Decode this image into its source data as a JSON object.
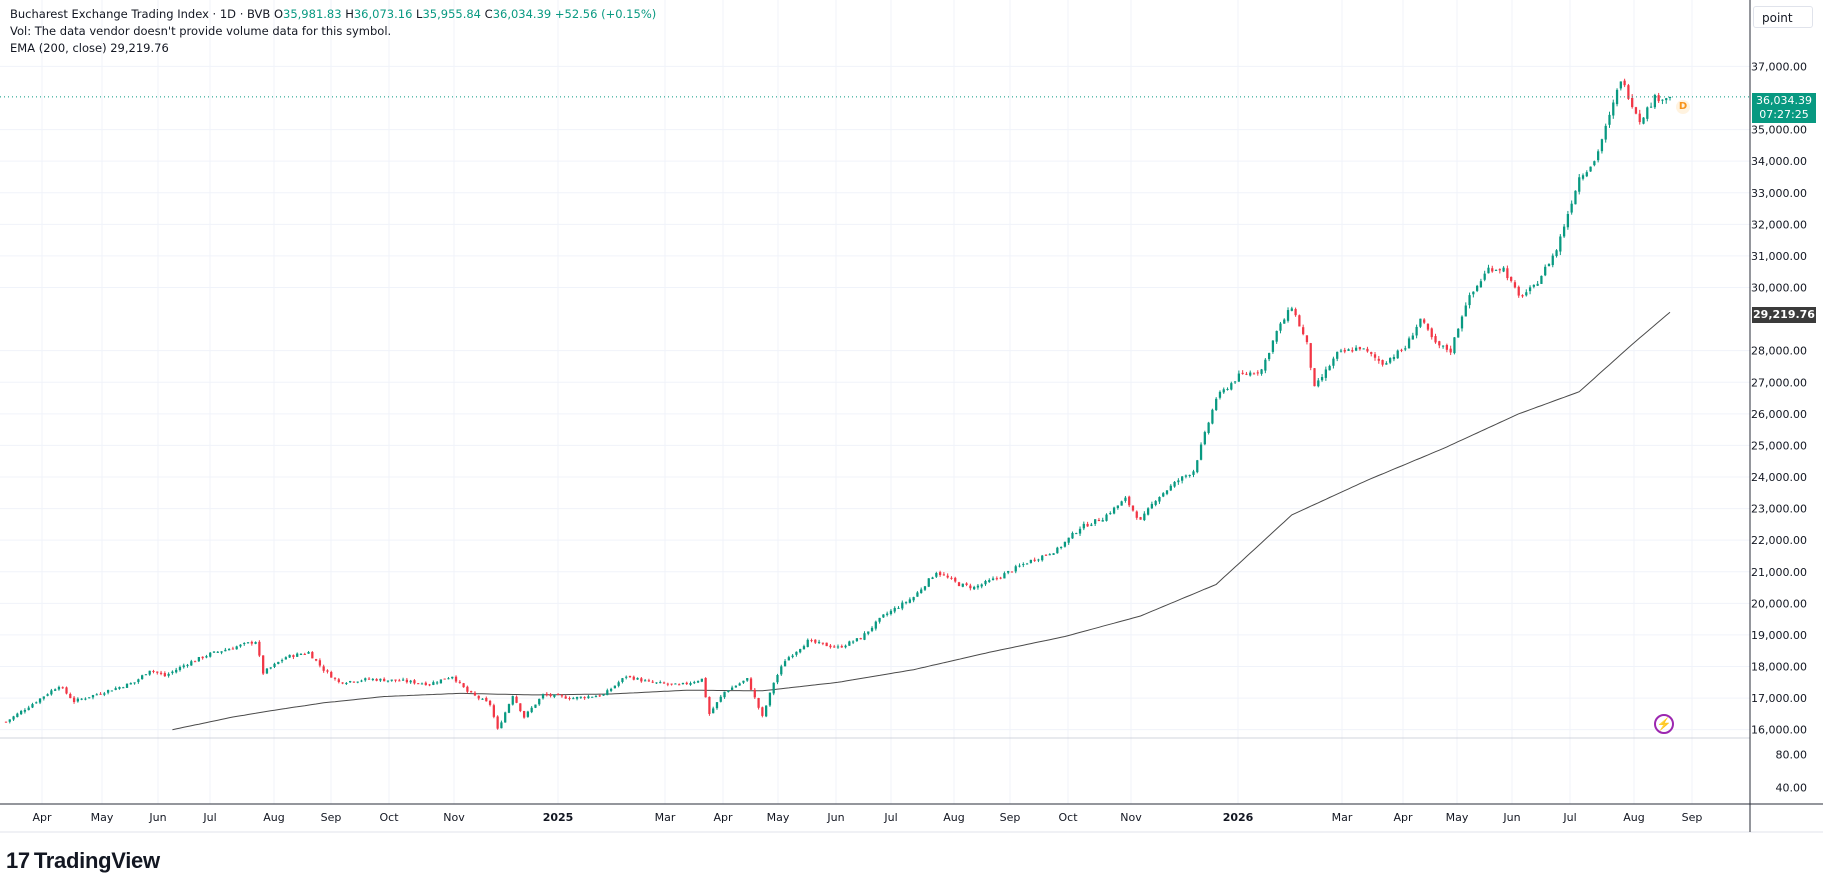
{
  "header": {
    "symbol": "Bucharest Exchange Trading Index · 1D · BVB",
    "o_label": "O",
    "o_value": "35,981.83",
    "h_label": "H",
    "h_value": "36,073.16",
    "l_label": "L",
    "l_value": "35,955.84",
    "c_label": "C",
    "c_value": "36,034.39",
    "change": "+52.56 (+0.15%)",
    "vol_note": "Vol: The data vendor doesn't provide volume data for this symbol.",
    "ema_label": "EMA (200, close)",
    "ema_value": "29,219.76"
  },
  "unit_selector": "point",
  "last_price": {
    "value": "36,034.39",
    "countdown": "07:27:25"
  },
  "ema_tag": "29,219.76",
  "badge": "D",
  "bolt_icon": "lightning-icon",
  "brand": {
    "text": "TradingView"
  },
  "colors": {
    "up": "#089981",
    "down": "#f23645",
    "ema": "#4a4a4a",
    "grid": "#f0f3fa",
    "accent": "#089981"
  },
  "chart_data": {
    "type": "candlestick",
    "price_axis": {
      "labels": [
        "37,000.00",
        "35,000.00",
        "34,000.00",
        "33,000.00",
        "32,000.00",
        "31,000.00",
        "30,000.00",
        "28,000.00",
        "27,000.00",
        "26,000.00",
        "25,000.00",
        "24,000.00",
        "23,000.00",
        "22,000.00",
        "21,000.00",
        "20,000.00",
        "19,000.00",
        "18,000.00",
        "17,000.00",
        "16,000.00"
      ],
      "values": [
        37000,
        35000,
        34000,
        33000,
        32000,
        31000,
        30000,
        28000,
        27000,
        26000,
        25000,
        24000,
        23000,
        22000,
        21000,
        20000,
        19000,
        18000,
        17000,
        16000
      ],
      "ylim": [
        15800,
        37900
      ]
    },
    "indicator_axis": {
      "labels": [
        "80.00",
        "40.00"
      ],
      "values": [
        80,
        40
      ],
      "ylim": [
        20,
        100
      ]
    },
    "time_axis": [
      {
        "label": "Apr",
        "bold": false
      },
      {
        "label": "May",
        "bold": false
      },
      {
        "label": "Jun",
        "bold": false
      },
      {
        "label": "Jul",
        "bold": false
      },
      {
        "label": "Aug",
        "bold": false
      },
      {
        "label": "Sep",
        "bold": false
      },
      {
        "label": "Oct",
        "bold": false
      },
      {
        "label": "Nov",
        "bold": false
      },
      {
        "label": "2025",
        "bold": true
      },
      {
        "label": "Mar",
        "bold": false
      },
      {
        "label": "Apr",
        "bold": false
      },
      {
        "label": "May",
        "bold": false
      },
      {
        "label": "Jun",
        "bold": false
      },
      {
        "label": "Jul",
        "bold": false
      },
      {
        "label": "Aug",
        "bold": false
      },
      {
        "label": "Sep",
        "bold": false
      },
      {
        "label": "Oct",
        "bold": false
      },
      {
        "label": "Nov",
        "bold": false
      },
      {
        "label": "2026",
        "bold": true
      },
      {
        "label": "Mar",
        "bold": false
      },
      {
        "label": "Apr",
        "bold": false
      },
      {
        "label": "May",
        "bold": false
      },
      {
        "label": "Jun",
        "bold": false
      },
      {
        "label": "Jul",
        "bold": false
      },
      {
        "label": "Aug",
        "bold": false
      },
      {
        "label": "Sep",
        "bold": false
      }
    ],
    "series": [
      {
        "name": "Price",
        "kind": "candles",
        "anchors": [
          [
            0,
            16250
          ],
          [
            8,
            16900
          ],
          [
            14,
            17400
          ],
          [
            18,
            16900
          ],
          [
            26,
            17200
          ],
          [
            34,
            17500
          ],
          [
            38,
            17900
          ],
          [
            42,
            17700
          ],
          [
            48,
            18100
          ],
          [
            54,
            18400
          ],
          [
            60,
            18600
          ],
          [
            66,
            18800
          ],
          [
            68,
            17800
          ],
          [
            74,
            18300
          ],
          [
            80,
            18450
          ],
          [
            84,
            17900
          ],
          [
            88,
            17500
          ],
          [
            96,
            17600
          ],
          [
            104,
            17550
          ],
          [
            112,
            17450
          ],
          [
            118,
            17700
          ],
          [
            122,
            17200
          ],
          [
            128,
            16800
          ],
          [
            130,
            16000
          ],
          [
            134,
            17100
          ],
          [
            137,
            16400
          ],
          [
            142,
            17100
          ],
          [
            150,
            17000
          ],
          [
            158,
            17100
          ],
          [
            164,
            17700
          ],
          [
            170,
            17500
          ],
          [
            178,
            17400
          ],
          [
            184,
            17600
          ],
          [
            186,
            16500
          ],
          [
            190,
            17200
          ],
          [
            196,
            17600
          ],
          [
            200,
            16400
          ],
          [
            203,
            17500
          ],
          [
            206,
            18200
          ],
          [
            212,
            18800
          ],
          [
            220,
            18600
          ],
          [
            226,
            18900
          ],
          [
            232,
            19600
          ],
          [
            240,
            20200
          ],
          [
            246,
            21000
          ],
          [
            252,
            20600
          ],
          [
            256,
            20500
          ],
          [
            262,
            20800
          ],
          [
            270,
            21300
          ],
          [
            278,
            21700
          ],
          [
            284,
            22400
          ],
          [
            290,
            22700
          ],
          [
            296,
            23300
          ],
          [
            300,
            22600
          ],
          [
            304,
            23300
          ],
          [
            310,
            23900
          ],
          [
            314,
            24200
          ],
          [
            320,
            26500
          ],
          [
            326,
            27200
          ],
          [
            332,
            27400
          ],
          [
            336,
            28600
          ],
          [
            340,
            29400
          ],
          [
            344,
            28200
          ],
          [
            346,
            26800
          ],
          [
            352,
            27900
          ],
          [
            358,
            28100
          ],
          [
            364,
            27600
          ],
          [
            370,
            28100
          ],
          [
            374,
            29000
          ],
          [
            378,
            28200
          ],
          [
            382,
            28000
          ],
          [
            386,
            29500
          ],
          [
            392,
            30600
          ],
          [
            396,
            30600
          ],
          [
            400,
            29700
          ],
          [
            404,
            30000
          ],
          [
            410,
            31200
          ],
          [
            416,
            33500
          ],
          [
            420,
            34000
          ],
          [
            424,
            35400
          ],
          [
            427,
            36600
          ],
          [
            432,
            35300
          ],
          [
            436,
            36000
          ],
          [
            440,
            36034
          ]
        ]
      },
      {
        "name": "EMA (200, close)",
        "kind": "line",
        "anchors": [
          [
            44,
            16000
          ],
          [
            60,
            16400
          ],
          [
            70,
            16600
          ],
          [
            84,
            16850
          ],
          [
            100,
            17050
          ],
          [
            120,
            17150
          ],
          [
            140,
            17100
          ],
          [
            160,
            17130
          ],
          [
            180,
            17250
          ],
          [
            200,
            17230
          ],
          [
            220,
            17500
          ],
          [
            240,
            17900
          ],
          [
            260,
            18450
          ],
          [
            280,
            18950
          ],
          [
            300,
            19600
          ],
          [
            320,
            20600
          ],
          [
            340,
            22800
          ],
          [
            360,
            23900
          ],
          [
            380,
            24900
          ],
          [
            400,
            26000
          ],
          [
            416,
            26700
          ],
          [
            430,
            28200
          ],
          [
            440,
            29219.76
          ]
        ]
      }
    ],
    "last_value": 36034.39,
    "ema_last_value": 29219.76
  }
}
